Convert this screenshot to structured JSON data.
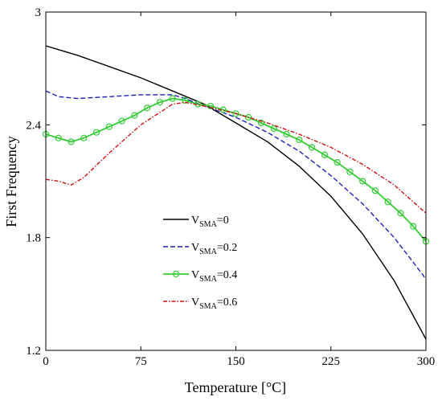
{
  "chart_data": {
    "type": "line",
    "title": "",
    "xlabel": "Temperature [°C]",
    "ylabel": "First Frequency",
    "xlim": [
      0,
      300
    ],
    "ylim": [
      1.2,
      3.0
    ],
    "xticks": [
      0,
      75,
      150,
      225,
      300
    ],
    "yticks": [
      1.2,
      1.8,
      2.4,
      3.0
    ],
    "xtick_labels": [
      "0",
      "75",
      "150",
      "225",
      "300"
    ],
    "ytick_labels": [
      "1.2",
      "1.8",
      "2.4",
      "3"
    ],
    "grid": false,
    "legend_position": "center",
    "series": [
      {
        "label_main": "V",
        "label_sub": "SMA",
        "label_suffix": "=0",
        "color": "#000000",
        "style": "solid",
        "marker": "none",
        "x": [
          0,
          25,
          50,
          75,
          100,
          125,
          150,
          175,
          200,
          225,
          250,
          275,
          300
        ],
        "y": [
          2.82,
          2.77,
          2.71,
          2.65,
          2.58,
          2.51,
          2.41,
          2.31,
          2.18,
          2.02,
          1.82,
          1.57,
          1.26
        ]
      },
      {
        "label_main": "V",
        "label_sub": "SMA",
        "label_suffix": "=0.2",
        "color": "#1f1fbf",
        "style": "dashed",
        "marker": "none",
        "x": [
          0,
          10,
          25,
          50,
          75,
          100,
          110,
          125,
          150,
          175,
          200,
          225,
          250,
          275,
          300
        ],
        "y": [
          2.58,
          2.55,
          2.54,
          2.55,
          2.56,
          2.56,
          2.54,
          2.5,
          2.44,
          2.36,
          2.26,
          2.13,
          1.98,
          1.8,
          1.58
        ]
      },
      {
        "label_main": "V",
        "label_sub": "SMA",
        "label_suffix": "=0.4",
        "color": "#33cc33",
        "style": "solid",
        "marker": "circle",
        "x": [
          0,
          10,
          20,
          30,
          40,
          50,
          60,
          70,
          80,
          90,
          100,
          110,
          120,
          130,
          140,
          150,
          160,
          170,
          180,
          190,
          200,
          210,
          220,
          230,
          240,
          250,
          260,
          270,
          280,
          290,
          300
        ],
        "y": [
          2.35,
          2.33,
          2.31,
          2.33,
          2.36,
          2.39,
          2.42,
          2.45,
          2.49,
          2.52,
          2.54,
          2.53,
          2.51,
          2.5,
          2.48,
          2.46,
          2.44,
          2.41,
          2.38,
          2.35,
          2.32,
          2.28,
          2.24,
          2.2,
          2.15,
          2.1,
          2.05,
          1.99,
          1.93,
          1.86,
          1.78
        ]
      },
      {
        "label_main": "V",
        "label_sub": "SMA",
        "label_suffix": "=0.6",
        "color": "#cc1111",
        "style": "dashdot",
        "marker": "none",
        "x": [
          0,
          10,
          20,
          30,
          50,
          75,
          100,
          110,
          125,
          150,
          175,
          200,
          225,
          250,
          275,
          300
        ],
        "y": [
          2.11,
          2.1,
          2.08,
          2.12,
          2.25,
          2.4,
          2.51,
          2.52,
          2.5,
          2.46,
          2.41,
          2.35,
          2.28,
          2.19,
          2.08,
          1.93
        ]
      }
    ]
  }
}
